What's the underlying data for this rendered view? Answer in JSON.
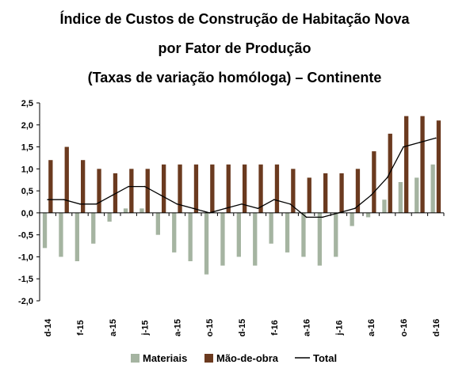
{
  "chart_data": {
    "type": "bar",
    "title_lines": [
      "Índice de Custos de Construção de Habitação Nova",
      "por Fator de Produção",
      "(Taxas de variação homóloga) – Continente"
    ],
    "xlabel": "",
    "ylabel": "",
    "ylim": [
      -2.0,
      2.5
    ],
    "y_ticks": [
      "2,5",
      "2,0",
      "1,5",
      "1,0",
      "0,5",
      "0,0",
      "-0,5",
      "-1,0",
      "-1,5",
      "-2,0"
    ],
    "y_tick_values": [
      2.5,
      2.0,
      1.5,
      1.0,
      0.5,
      0.0,
      -0.5,
      -1.0,
      -1.5,
      -2.0
    ],
    "categories": [
      "d-14",
      "j-15",
      "f-15",
      "m-15",
      "a-15",
      "m-15",
      "j-15",
      "j-15",
      "a-15",
      "s-15",
      "o-15",
      "n-15",
      "d-15",
      "j-16",
      "f-16",
      "m-16",
      "a-16",
      "m-16",
      "j-16",
      "j-16",
      "a-16",
      "s-16",
      "o-16",
      "n-16",
      "d-16"
    ],
    "x_tick_labels": [
      "d-14",
      "",
      "f-15",
      "",
      "a-15",
      "",
      "j-15",
      "",
      "a-15",
      "",
      "o-15",
      "",
      "d-15",
      "",
      "f-16",
      "",
      "a-16",
      "",
      "j-16",
      "",
      "a-16",
      "",
      "o-16",
      "",
      "d-16"
    ],
    "grid": false,
    "legend_position": "bottom",
    "series": [
      {
        "name": "Materiais",
        "kind": "bar",
        "color": "#a5b4a1",
        "values": [
          -0.8,
          -1.0,
          -1.1,
          -0.7,
          -0.2,
          0.1,
          0.1,
          -0.5,
          -0.9,
          -1.1,
          -1.4,
          -1.2,
          -1.0,
          -1.2,
          -0.7,
          -0.9,
          -1.0,
          -1.2,
          -1.0,
          -0.3,
          -0.1,
          0.3,
          0.7,
          0.8,
          1.1
        ]
      },
      {
        "name": "Mão-de-obra",
        "kind": "bar",
        "color": "#6b3a1f",
        "values": [
          1.2,
          1.5,
          1.2,
          1.0,
          0.9,
          1.0,
          1.0,
          1.1,
          1.1,
          1.1,
          1.1,
          1.1,
          1.1,
          1.1,
          1.1,
          1.0,
          0.8,
          0.9,
          0.9,
          1.0,
          1.4,
          1.8,
          2.2,
          2.2,
          2.1
        ]
      },
      {
        "name": "Total",
        "kind": "line",
        "color": "#000000",
        "values": [
          0.3,
          0.3,
          0.2,
          0.2,
          0.4,
          0.6,
          0.6,
          0.4,
          0.2,
          0.1,
          0.0,
          0.1,
          0.2,
          0.1,
          0.3,
          0.2,
          -0.1,
          -0.1,
          0.0,
          0.1,
          0.4,
          0.8,
          1.5,
          1.6,
          1.7
        ]
      }
    ]
  }
}
